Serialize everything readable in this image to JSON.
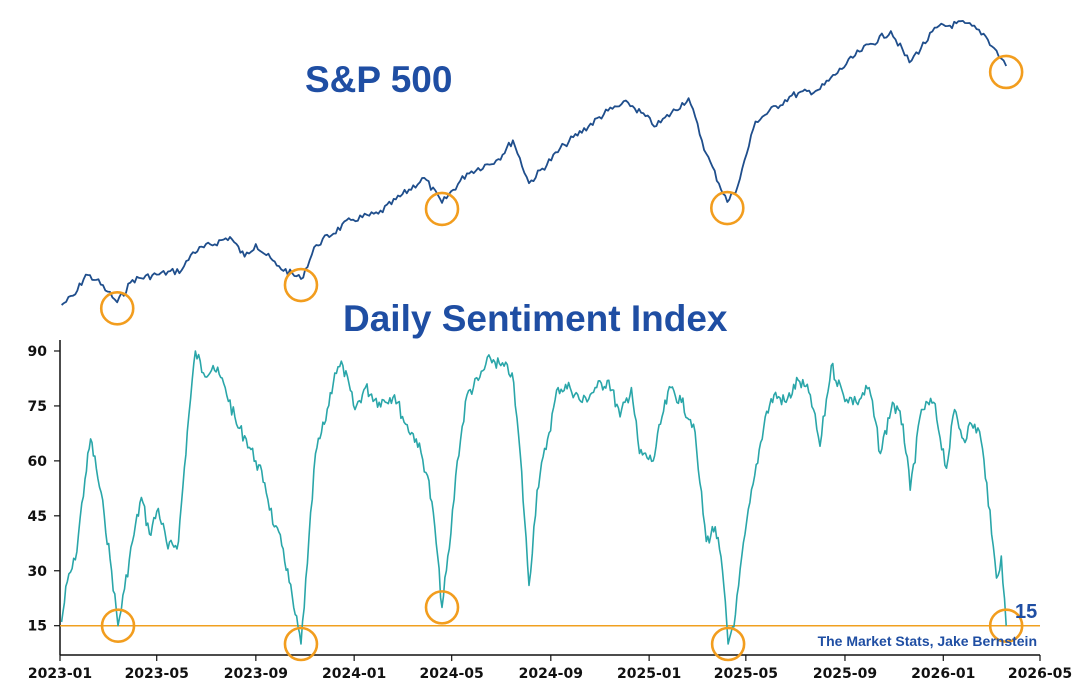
{
  "chart_data": [
    {
      "type": "line",
      "title": "S&P 500",
      "x_range": [
        "2023-01-01",
        "2026-05-01"
      ],
      "y_axis": "none",
      "series": [
        {
          "color": "#1f4e8c",
          "points": [
            [
              "2023-01-03",
              3830
            ],
            [
              "2023-01-20",
              3950
            ],
            [
              "2023-02-02",
              4170
            ],
            [
              "2023-02-15",
              4110
            ],
            [
              "2023-03-01",
              3980
            ],
            [
              "2023-03-13",
              3860
            ],
            [
              "2023-04-01",
              4110
            ],
            [
              "2023-05-01",
              4170
            ],
            [
              "2023-06-01",
              4220
            ],
            [
              "2023-06-15",
              4420
            ],
            [
              "2023-07-31",
              4590
            ],
            [
              "2023-08-18",
              4370
            ],
            [
              "2023-09-01",
              4510
            ],
            [
              "2023-09-27",
              4270
            ],
            [
              "2023-10-27",
              4120
            ],
            [
              "2023-11-15",
              4500
            ],
            [
              "2023-12-28",
              4780
            ],
            [
              "2024-01-31",
              4850
            ],
            [
              "2024-03-28",
              5250
            ],
            [
              "2024-04-19",
              4970
            ],
            [
              "2024-05-20",
              5300
            ],
            [
              "2024-06-28",
              5460
            ],
            [
              "2024-07-16",
              5670
            ],
            [
              "2024-08-05",
              5190
            ],
            [
              "2024-09-18",
              5620
            ],
            [
              "2024-11-11",
              6000
            ],
            [
              "2024-12-06",
              6090
            ],
            [
              "2025-01-10",
              5830
            ],
            [
              "2025-02-19",
              6140
            ],
            [
              "2025-03-13",
              5520
            ],
            [
              "2025-04-08",
              4980
            ],
            [
              "2025-04-21",
              5160
            ],
            [
              "2025-05-13",
              5880
            ],
            [
              "2025-06-27",
              6170
            ],
            [
              "2025-08-01",
              6240
            ],
            [
              "2025-09-19",
              6660
            ],
            [
              "2025-10-28",
              6890
            ],
            [
              "2025-11-20",
              6540
            ],
            [
              "2025-12-24",
              6930
            ],
            [
              "2026-01-28",
              6980
            ],
            [
              "2026-02-20",
              6860
            ],
            [
              "2026-03-05",
              6700
            ],
            [
              "2026-03-20",
              6500
            ]
          ]
        }
      ],
      "highlights": [
        "2023-03-13",
        "2023-10-27",
        "2024-04-19",
        "2025-04-08",
        "2026-03-20"
      ]
    },
    {
      "type": "line",
      "title": "Daily Sentiment Index",
      "x_range": [
        "2023-01-01",
        "2026-05-01"
      ],
      "x_ticks": [
        "2023-01",
        "2023-05",
        "2023-09",
        "2024-01",
        "2024-05",
        "2024-09",
        "2025-01",
        "2025-05",
        "2025-09",
        "2026-01",
        "2026-05"
      ],
      "y_range": [
        7,
        93
      ],
      "y_ticks": [
        "15",
        "30",
        "45",
        "60",
        "75",
        "90"
      ],
      "reference_line": 15,
      "reference_color": "#f0a020",
      "last_value_label": "15",
      "credit": "The Market Stats, Jake Bernstein",
      "series": [
        {
          "color": "#2aa6a9",
          "points": [
            [
              "2023-01-03",
              16
            ],
            [
              "2023-01-10",
              27
            ],
            [
              "2023-01-20",
              33
            ],
            [
              "2023-02-01",
              55
            ],
            [
              "2023-02-08",
              66
            ],
            [
              "2023-02-15",
              58
            ],
            [
              "2023-02-25",
              45
            ],
            [
              "2023-03-06",
              30
            ],
            [
              "2023-03-14",
              15
            ],
            [
              "2023-03-22",
              25
            ],
            [
              "2023-04-01",
              38
            ],
            [
              "2023-04-12",
              50
            ],
            [
              "2023-04-22",
              40
            ],
            [
              "2023-05-03",
              47
            ],
            [
              "2023-05-15",
              36
            ],
            [
              "2023-05-28",
              38
            ],
            [
              "2023-06-08",
              68
            ],
            [
              "2023-06-18",
              90
            ],
            [
              "2023-06-28",
              84
            ],
            [
              "2023-07-10",
              86
            ],
            [
              "2023-07-25",
              80
            ],
            [
              "2023-08-08",
              70
            ],
            [
              "2023-08-20",
              66
            ],
            [
              "2023-09-01",
              60
            ],
            [
              "2023-09-12",
              54
            ],
            [
              "2023-09-24",
              42
            ],
            [
              "2023-10-05",
              36
            ],
            [
              "2023-10-18",
              20
            ],
            [
              "2023-10-27",
              10
            ],
            [
              "2023-11-04",
              32
            ],
            [
              "2023-11-14",
              62
            ],
            [
              "2023-11-25",
              70
            ],
            [
              "2023-12-08",
              84
            ],
            [
              "2023-12-18",
              86
            ],
            [
              "2024-01-02",
              74
            ],
            [
              "2024-01-15",
              80
            ],
            [
              "2024-02-01",
              76
            ],
            [
              "2024-02-20",
              78
            ],
            [
              "2024-03-05",
              70
            ],
            [
              "2024-03-18",
              66
            ],
            [
              "2024-04-01",
              56
            ],
            [
              "2024-04-10",
              42
            ],
            [
              "2024-04-19",
              20
            ],
            [
              "2024-04-28",
              36
            ],
            [
              "2024-05-08",
              60
            ],
            [
              "2024-05-20",
              78
            ],
            [
              "2024-06-03",
              82
            ],
            [
              "2024-06-18",
              88
            ],
            [
              "2024-07-01",
              86
            ],
            [
              "2024-07-15",
              84
            ],
            [
              "2024-07-25",
              62
            ],
            [
              "2024-08-05",
              26
            ],
            [
              "2024-08-15",
              52
            ],
            [
              "2024-08-28",
              66
            ],
            [
              "2024-09-10",
              80
            ],
            [
              "2024-09-25",
              80
            ],
            [
              "2024-10-10",
              76
            ],
            [
              "2024-10-28",
              80
            ],
            [
              "2024-11-12",
              82
            ],
            [
              "2024-11-26",
              72
            ],
            [
              "2024-12-10",
              80
            ],
            [
              "2024-12-20",
              62
            ],
            [
              "2025-01-06",
              60
            ],
            [
              "2025-01-17",
              72
            ],
            [
              "2025-01-28",
              80
            ],
            [
              "2025-02-10",
              76
            ],
            [
              "2025-02-25",
              70
            ],
            [
              "2025-03-05",
              54
            ],
            [
              "2025-03-13",
              38
            ],
            [
              "2025-03-24",
              42
            ],
            [
              "2025-04-02",
              30
            ],
            [
              "2025-04-09",
              10
            ],
            [
              "2025-04-18",
              18
            ],
            [
              "2025-04-30",
              40
            ],
            [
              "2025-05-12",
              56
            ],
            [
              "2025-05-25",
              72
            ],
            [
              "2025-06-05",
              78
            ],
            [
              "2025-06-20",
              76
            ],
            [
              "2025-07-05",
              82
            ],
            [
              "2025-07-20",
              78
            ],
            [
              "2025-08-01",
              64
            ],
            [
              "2025-08-15",
              86
            ],
            [
              "2025-08-30",
              78
            ],
            [
              "2025-09-15",
              76
            ],
            [
              "2025-10-01",
              80
            ],
            [
              "2025-10-15",
              62
            ],
            [
              "2025-10-30",
              76
            ],
            [
              "2025-11-12",
              70
            ],
            [
              "2025-11-21",
              52
            ],
            [
              "2025-12-05",
              74
            ],
            [
              "2025-12-20",
              76
            ],
            [
              "2026-01-05",
              58
            ],
            [
              "2026-01-15",
              74
            ],
            [
              "2026-01-26",
              66
            ],
            [
              "2026-02-05",
              70
            ],
            [
              "2026-02-15",
              68
            ],
            [
              "2026-02-24",
              54
            ],
            [
              "2026-03-02",
              40
            ],
            [
              "2026-03-08",
              28
            ],
            [
              "2026-03-14",
              34
            ],
            [
              "2026-03-20",
              15
            ]
          ]
        }
      ],
      "highlights": [
        [
          "2023-03-14",
          15
        ],
        [
          "2023-10-27",
          10
        ],
        [
          "2024-04-19",
          20
        ],
        [
          "2025-04-09",
          10
        ],
        [
          "2026-03-20",
          15
        ]
      ]
    }
  ]
}
